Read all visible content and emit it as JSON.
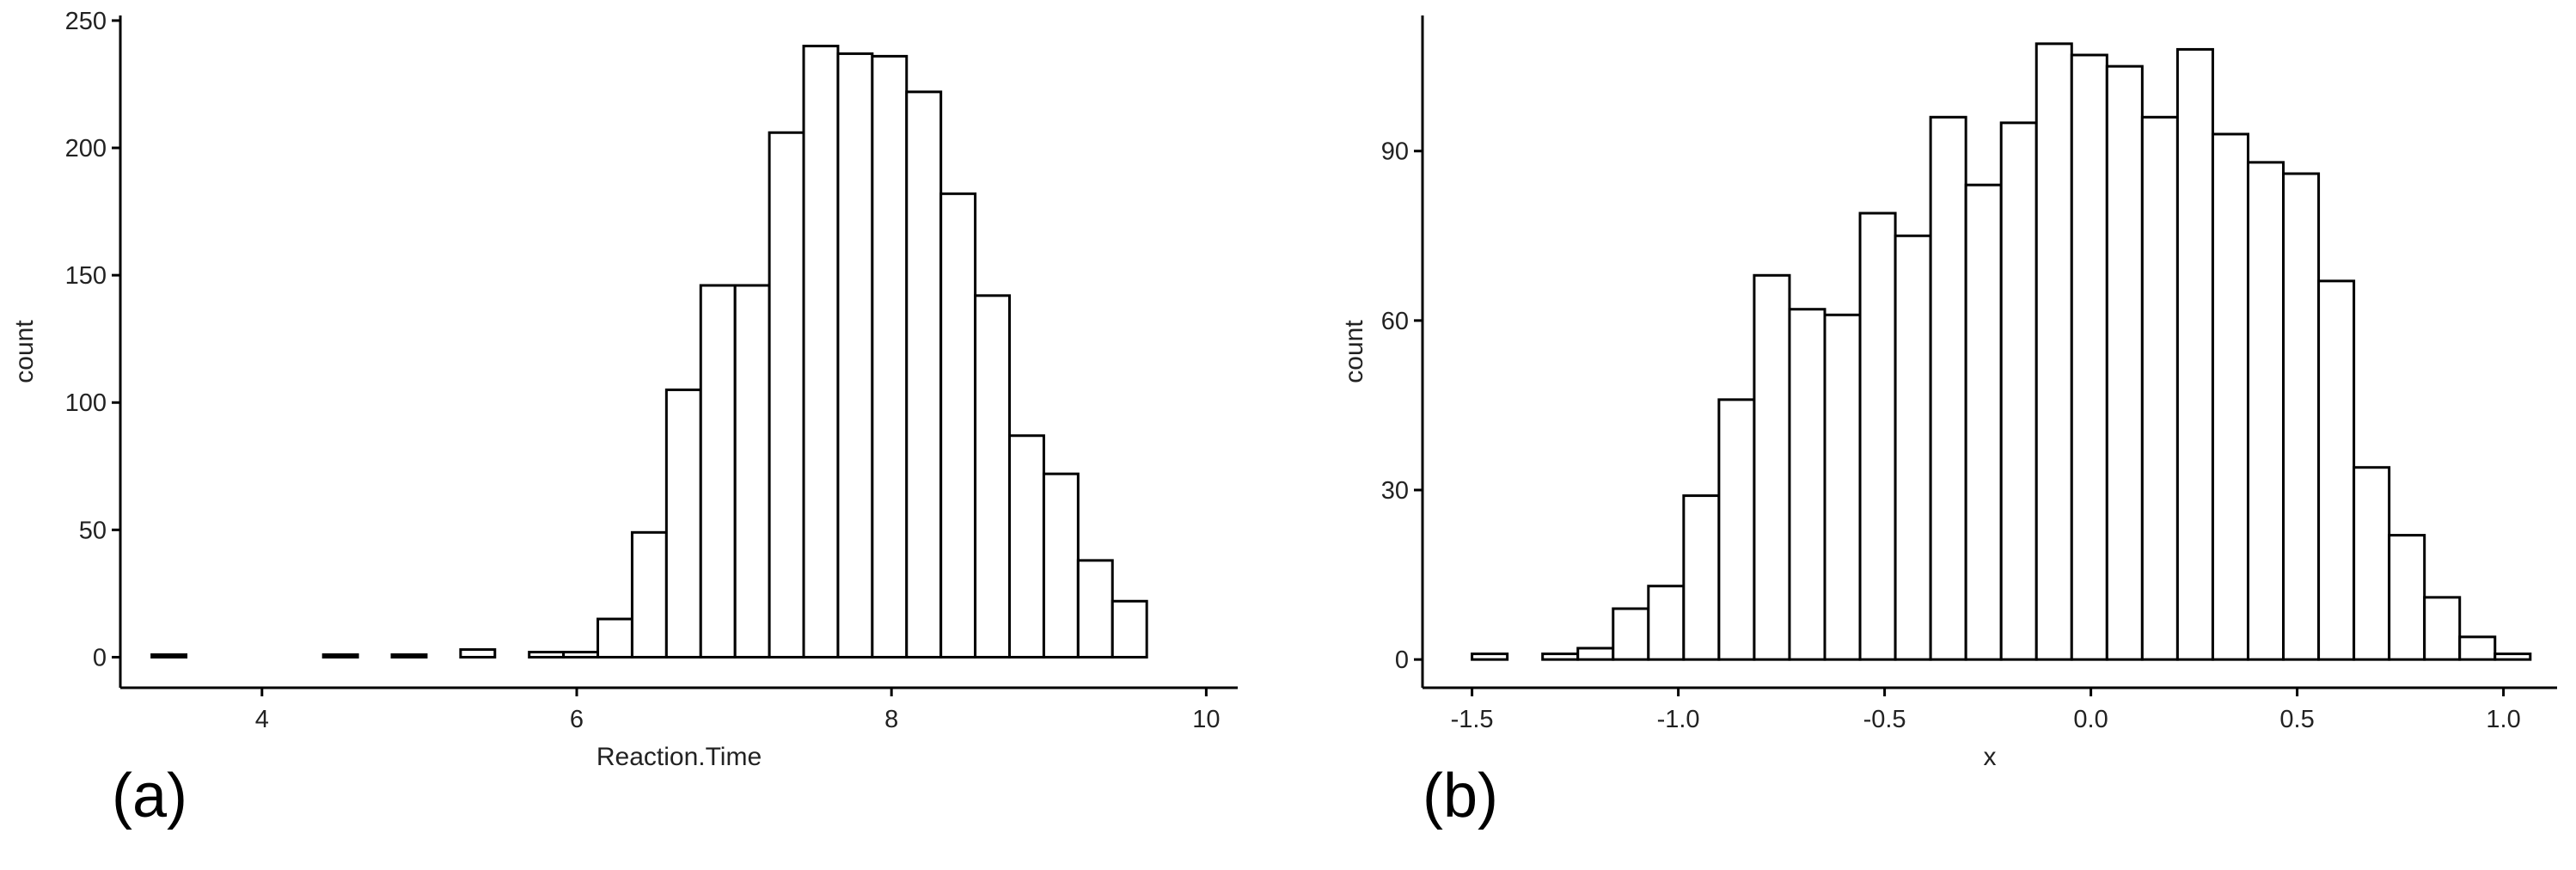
{
  "chart_data": [
    {
      "type": "bar",
      "panel_label": "(a)",
      "xlabel": "Reaction.Time",
      "ylabel": "count",
      "xlim": [
        3.1,
        10.2
      ],
      "ylim": [
        -12,
        252
      ],
      "x_ticks": [
        4,
        6,
        8,
        10
      ],
      "x_tick_labels": [
        "4",
        "6",
        "8",
        "10"
      ],
      "y_ticks": [
        0,
        50,
        100,
        150,
        200,
        250
      ],
      "y_tick_labels": [
        "0",
        "50",
        "100",
        "150",
        "200",
        "250"
      ],
      "grid": false,
      "bin_width": 0.218,
      "bin_starts": [
        3.3,
        3.518,
        3.736,
        3.954,
        4.172,
        4.39,
        4.608,
        4.826,
        5.044,
        5.262,
        5.48,
        5.698,
        5.916,
        6.134,
        6.352,
        6.57,
        6.788,
        7.006,
        7.224,
        7.442,
        7.66,
        7.878,
        8.096,
        8.314,
        8.532,
        8.75,
        8.968,
        9.186,
        9.404,
        9.622
      ],
      "values": [
        1,
        0,
        0,
        0,
        0,
        1,
        0,
        1,
        0,
        3,
        0,
        2,
        2,
        15,
        49,
        105,
        146,
        146,
        206,
        240,
        237,
        236,
        222,
        182,
        142,
        87,
        72,
        38,
        22,
        0
      ]
    },
    {
      "type": "bar",
      "panel_label": "(b)",
      "xlabel": "x",
      "ylabel": "count",
      "xlim": [
        -1.62,
        1.13
      ],
      "ylim": [
        -5,
        114
      ],
      "x_ticks": [
        -1.5,
        -1.0,
        -0.5,
        0.0,
        0.5,
        1.0
      ],
      "x_tick_labels": [
        "-1.5",
        "-1.0",
        "-0.5",
        "0.0",
        "0.5",
        "1.0"
      ],
      "y_ticks": [
        0,
        30,
        60,
        90
      ],
      "y_tick_labels": [
        "0",
        "30",
        "60",
        "90"
      ],
      "grid": false,
      "bin_width": 0.0855,
      "bin_starts": [
        -1.5,
        -1.4145,
        -1.329,
        -1.2435,
        -1.158,
        -1.0725,
        -0.987,
        -0.9015,
        -0.816,
        -0.7305,
        -0.645,
        -0.5595,
        -0.474,
        -0.3885,
        -0.303,
        -0.2175,
        -0.132,
        -0.0465,
        0.039,
        0.1245,
        0.21,
        0.2955,
        0.381,
        0.4665,
        0.552,
        0.6375,
        0.723,
        0.8085,
        0.894,
        0.9795
      ],
      "values": [
        1,
        0,
        1,
        2,
        9,
        13,
        29,
        46,
        68,
        62,
        61,
        79,
        75,
        96,
        84,
        95,
        109,
        107,
        105,
        96,
        108,
        93,
        88,
        86,
        67,
        34,
        22,
        11,
        4,
        1
      ]
    }
  ]
}
